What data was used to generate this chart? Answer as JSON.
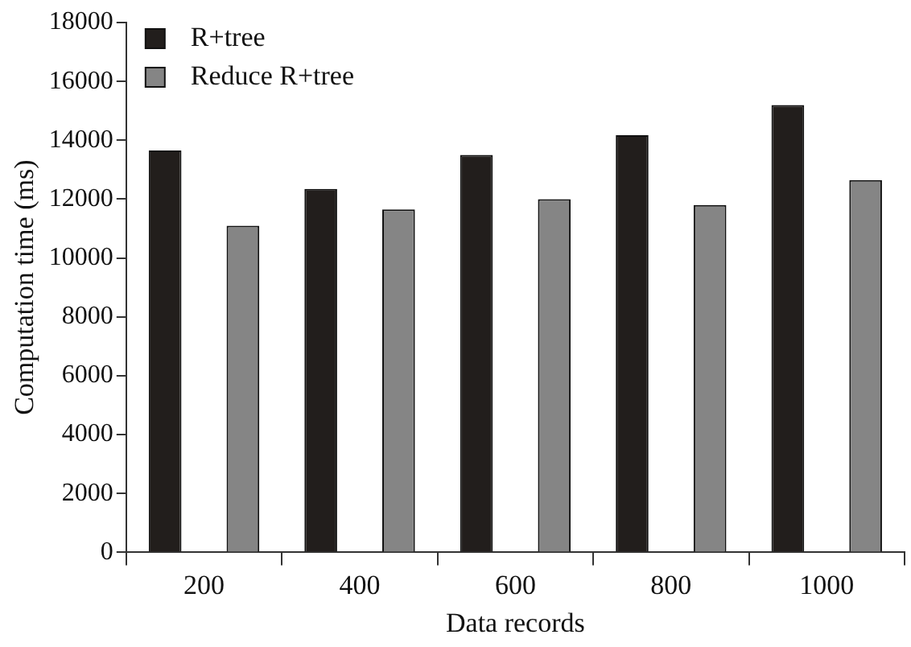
{
  "chart_data": {
    "type": "bar",
    "xlabel": "Data records",
    "ylabel": "Computation time (ms)",
    "categories": [
      "200",
      "400",
      "600",
      "800",
      "1000"
    ],
    "series": [
      {
        "name": "R+tree",
        "color": "#221e1c",
        "values": [
          13650,
          12350,
          13500,
          14170,
          15200
        ]
      },
      {
        "name": "Reduce R+tree",
        "color": "#858585",
        "values": [
          11100,
          11650,
          12000,
          11800,
          12650
        ]
      }
    ],
    "ylim": [
      0,
      18000
    ],
    "yticks": [
      0,
      2000,
      4000,
      6000,
      8000,
      10000,
      12000,
      14000,
      16000,
      18000
    ],
    "grid": false,
    "legend": "top left"
  }
}
